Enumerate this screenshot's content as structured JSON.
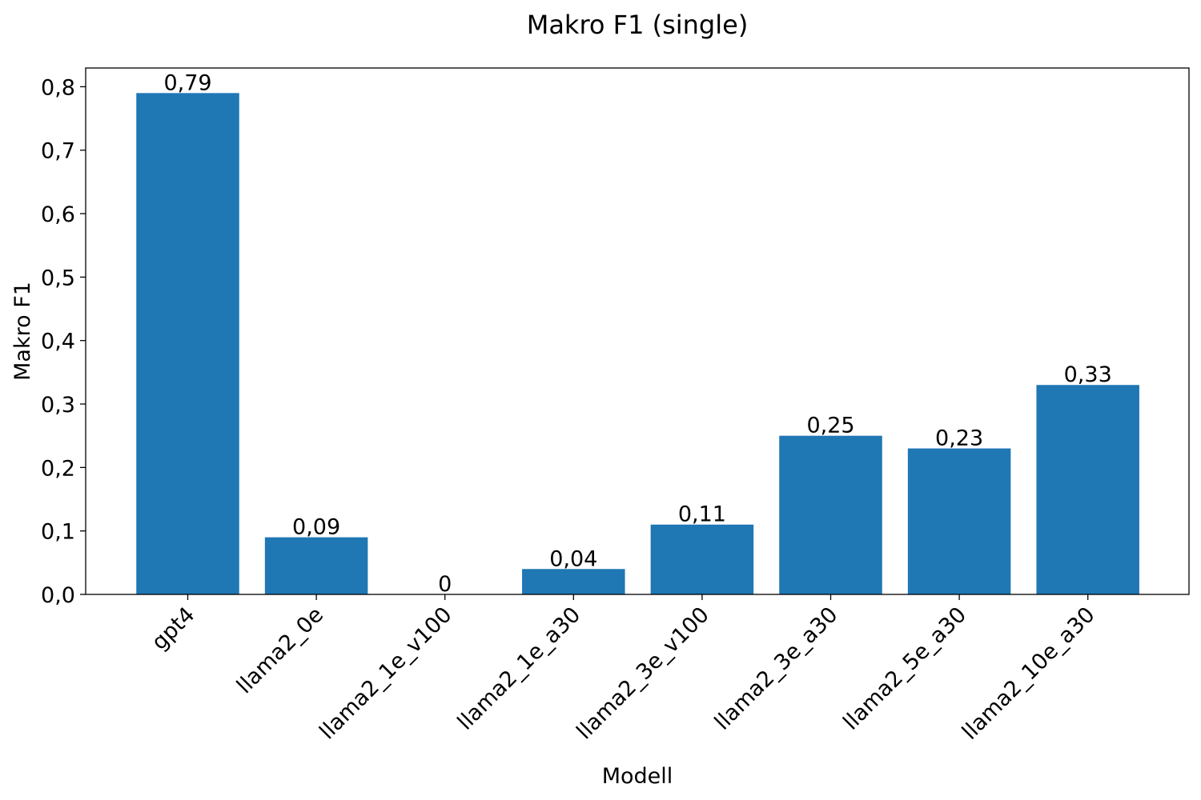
{
  "chart_data": {
    "type": "bar",
    "title": "Makro F1 (single)",
    "xlabel": "Modell",
    "ylabel": "Makro F1",
    "categories": [
      "gpt4",
      "llama2_0e",
      "llama2_1e_v100",
      "llama2_1e_a30",
      "llama2_3e_v100",
      "llama2_3e_a30",
      "llama2_5e_a30",
      "llama2_10e_a30"
    ],
    "values": [
      0.79,
      0.09,
      0,
      0.04,
      0.11,
      0.25,
      0.23,
      0.33
    ],
    "value_labels": [
      "0,79",
      "0,09",
      "0",
      "0,04",
      "0,11",
      "0,25",
      "0,23",
      "0,33"
    ],
    "yticks": [
      0,
      0.1,
      0.2,
      0.3,
      0.4,
      0.5,
      0.6,
      0.7,
      0.8
    ],
    "ytick_labels": [
      "0,0",
      "0,1",
      "0,2",
      "0,3",
      "0,4",
      "0,5",
      "0,6",
      "0,7",
      "0,8"
    ],
    "ylim": [
      0,
      0.8295
    ],
    "grid": false,
    "bar_color": "#1f77b4"
  }
}
